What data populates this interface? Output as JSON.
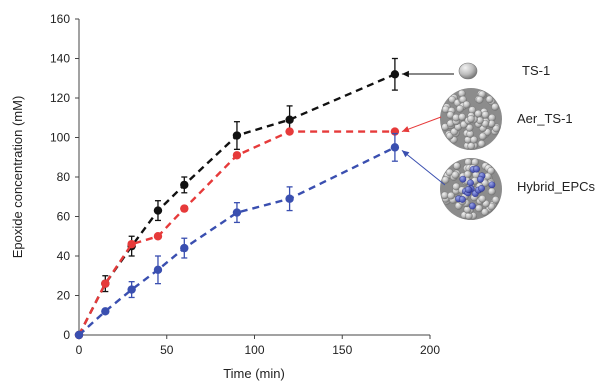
{
  "chart_data": {
    "type": "line",
    "xlabel": "Time (min)",
    "ylabel": "Epoxide concentration (mM)",
    "xlim": [
      0,
      200
    ],
    "ylim": [
      0,
      160
    ],
    "x_ticks": [
      0,
      50,
      100,
      150,
      200
    ],
    "y_ticks": [
      0,
      20,
      40,
      60,
      80,
      100,
      120,
      140,
      160
    ],
    "grid": false,
    "legend_placement": "right",
    "series": [
      {
        "name": "TS-1",
        "color": "#111111",
        "x": [
          0,
          15,
          30,
          45,
          60,
          90,
          120,
          180
        ],
        "y": [
          0,
          26,
          45,
          63,
          76,
          101,
          109,
          132
        ],
        "err": [
          0,
          4,
          5,
          5,
          4,
          7,
          7,
          8
        ]
      },
      {
        "name": "Aer_TS-1",
        "color": "#e63a3a",
        "x": [
          0,
          15,
          30,
          45,
          60,
          90,
          120,
          180
        ],
        "y": [
          0,
          26,
          46,
          50,
          64,
          91,
          103,
          103
        ],
        "err": [
          0,
          0,
          0,
          0,
          0,
          0,
          0,
          0
        ]
      },
      {
        "name": "Hybrid_EPCs",
        "color": "#3a4fb0",
        "x": [
          0,
          15,
          30,
          45,
          60,
          90,
          120,
          180
        ],
        "y": [
          0,
          12,
          23,
          33,
          44,
          62,
          69,
          95
        ],
        "err": [
          0,
          0,
          4,
          7,
          5,
          5,
          6,
          7
        ]
      }
    ],
    "legend": [
      {
        "label": "TS-1",
        "icon": "small-sphere-icon",
        "arrow_color": "#111111"
      },
      {
        "label": "Aer_TS-1",
        "icon": "sphere-cluster-icon",
        "arrow_color": "#e63a3a"
      },
      {
        "label": "Hybrid_EPCs",
        "icon": "hybrid-cluster-icon",
        "arrow_color": "#3a4fb0"
      }
    ]
  }
}
